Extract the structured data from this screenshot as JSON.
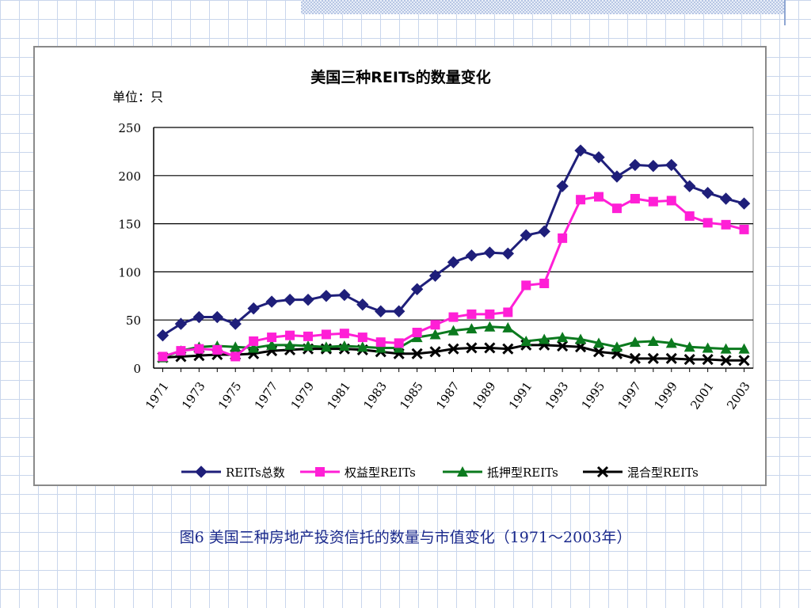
{
  "caption": "图6 美国三种房地产投资信托的数量与市值变化（1971～2003年）",
  "chart_data": {
    "type": "line",
    "title": "美国三种REITs的数量变化",
    "unit_label": "单位：只",
    "xlabel": "",
    "ylabel": "",
    "ylim": [
      0,
      250
    ],
    "yticks": [
      0,
      50,
      100,
      150,
      200,
      250
    ],
    "grid": true,
    "legend_position": "bottom",
    "x": [
      1971,
      1972,
      1973,
      1974,
      1975,
      1976,
      1977,
      1978,
      1979,
      1980,
      1981,
      1982,
      1983,
      1984,
      1985,
      1986,
      1987,
      1988,
      1989,
      1990,
      1991,
      1992,
      1993,
      1994,
      1995,
      1996,
      1997,
      1998,
      1999,
      2000,
      2001,
      2002,
      2003
    ],
    "xtick_labels": [
      "1971",
      "1973",
      "1975",
      "1977",
      "1979",
      "1981",
      "1983",
      "1985",
      "1987",
      "1989",
      "1991",
      "1993",
      "1995",
      "1997",
      "1999",
      "2001",
      "2003"
    ],
    "series": [
      {
        "name": "REITs总数",
        "color": "#1f1f7a",
        "marker": "diamond",
        "values": [
          34,
          46,
          53,
          53,
          46,
          62,
          69,
          71,
          71,
          75,
          76,
          66,
          59,
          59,
          82,
          96,
          110,
          117,
          120,
          119,
          138,
          142,
          189,
          226,
          219,
          199,
          211,
          210,
          211,
          189,
          182,
          176,
          171
        ]
      },
      {
        "name": "权益型REITs",
        "color": "#ff1fd6",
        "marker": "square",
        "values": [
          12,
          18,
          20,
          19,
          12,
          28,
          32,
          34,
          33,
          35,
          36,
          32,
          27,
          26,
          37,
          45,
          53,
          56,
          56,
          58,
          86,
          88,
          135,
          175,
          178,
          166,
          176,
          173,
          174,
          158,
          151,
          149,
          144
        ]
      },
      {
        "name": "抵押型REITs",
        "color": "#0b7a1e",
        "marker": "triangle",
        "values": [
          11,
          18,
          22,
          23,
          22,
          21,
          24,
          24,
          23,
          22,
          23,
          22,
          21,
          21,
          32,
          35,
          39,
          41,
          43,
          42,
          28,
          30,
          32,
          30,
          26,
          22,
          27,
          28,
          26,
          22,
          21,
          20,
          20
        ]
      },
      {
        "name": "混合型REITs",
        "color": "#000000",
        "marker": "x",
        "values": [
          11,
          12,
          13,
          14,
          14,
          15,
          18,
          19,
          20,
          20,
          20,
          19,
          17,
          15,
          15,
          17,
          20,
          21,
          21,
          20,
          24,
          24,
          23,
          22,
          17,
          15,
          10,
          10,
          10,
          9,
          9,
          8,
          8
        ]
      }
    ]
  }
}
